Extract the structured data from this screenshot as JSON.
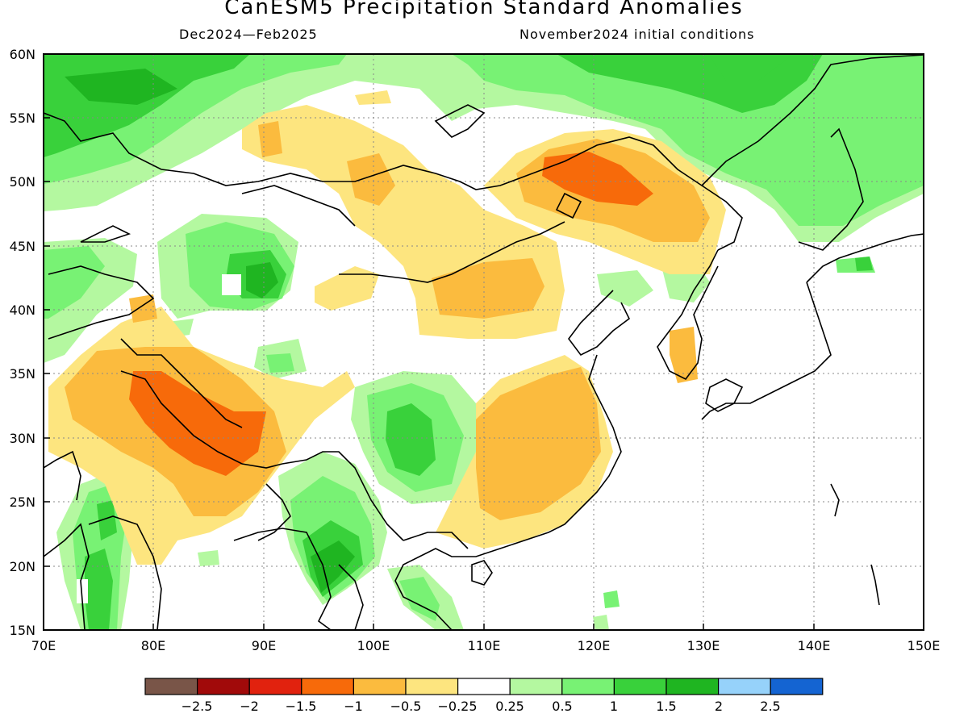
{
  "header": {
    "title": "CanESM5 Precipitation Standard Anomalies",
    "season": "Dec2024—Feb2025",
    "init": "November2024 initial conditions"
  },
  "map": {
    "lon_ticks": [
      "70E",
      "80E",
      "90E",
      "100E",
      "110E",
      "120E",
      "130E",
      "140E",
      "150E"
    ],
    "lat_ticks": [
      "60N",
      "55N",
      "50N",
      "45N",
      "40N",
      "35N",
      "30N",
      "25N",
      "20N",
      "15N"
    ],
    "lon_range": [
      70,
      150
    ],
    "lat_range": [
      15,
      60
    ],
    "grid": "dotted",
    "coastlines": true,
    "fill_colors": {
      "bin_neg1.5_to_neg1": "#f76a0a",
      "bin_neg1_to_neg0.5": "#fbbb3e",
      "bin_neg0.5_to_neg0.25": "#fde57f",
      "bin_0.25_to_0.5": "#b4f8a0",
      "bin_0.5_to_1": "#78f274",
      "bin_1_to_1.5": "#39d13b",
      "bin_1.5_to_2": "#1fb521"
    }
  },
  "colorbar": {
    "colors": [
      "#795548",
      "#a10a0a",
      "#e1220e",
      "#f76a0a",
      "#fbbb3e",
      "#fde57f",
      "#ffffff",
      "#b4f8a0",
      "#78f274",
      "#39d13b",
      "#1fb521",
      "#96d2fa",
      "#1464d2"
    ],
    "labels": [
      "−2.5",
      "−2",
      "−1.5",
      "−1",
      "−0.5",
      "−0.25",
      "0.25",
      "0.5",
      "1",
      "1.5",
      "2",
      "2.5"
    ]
  }
}
